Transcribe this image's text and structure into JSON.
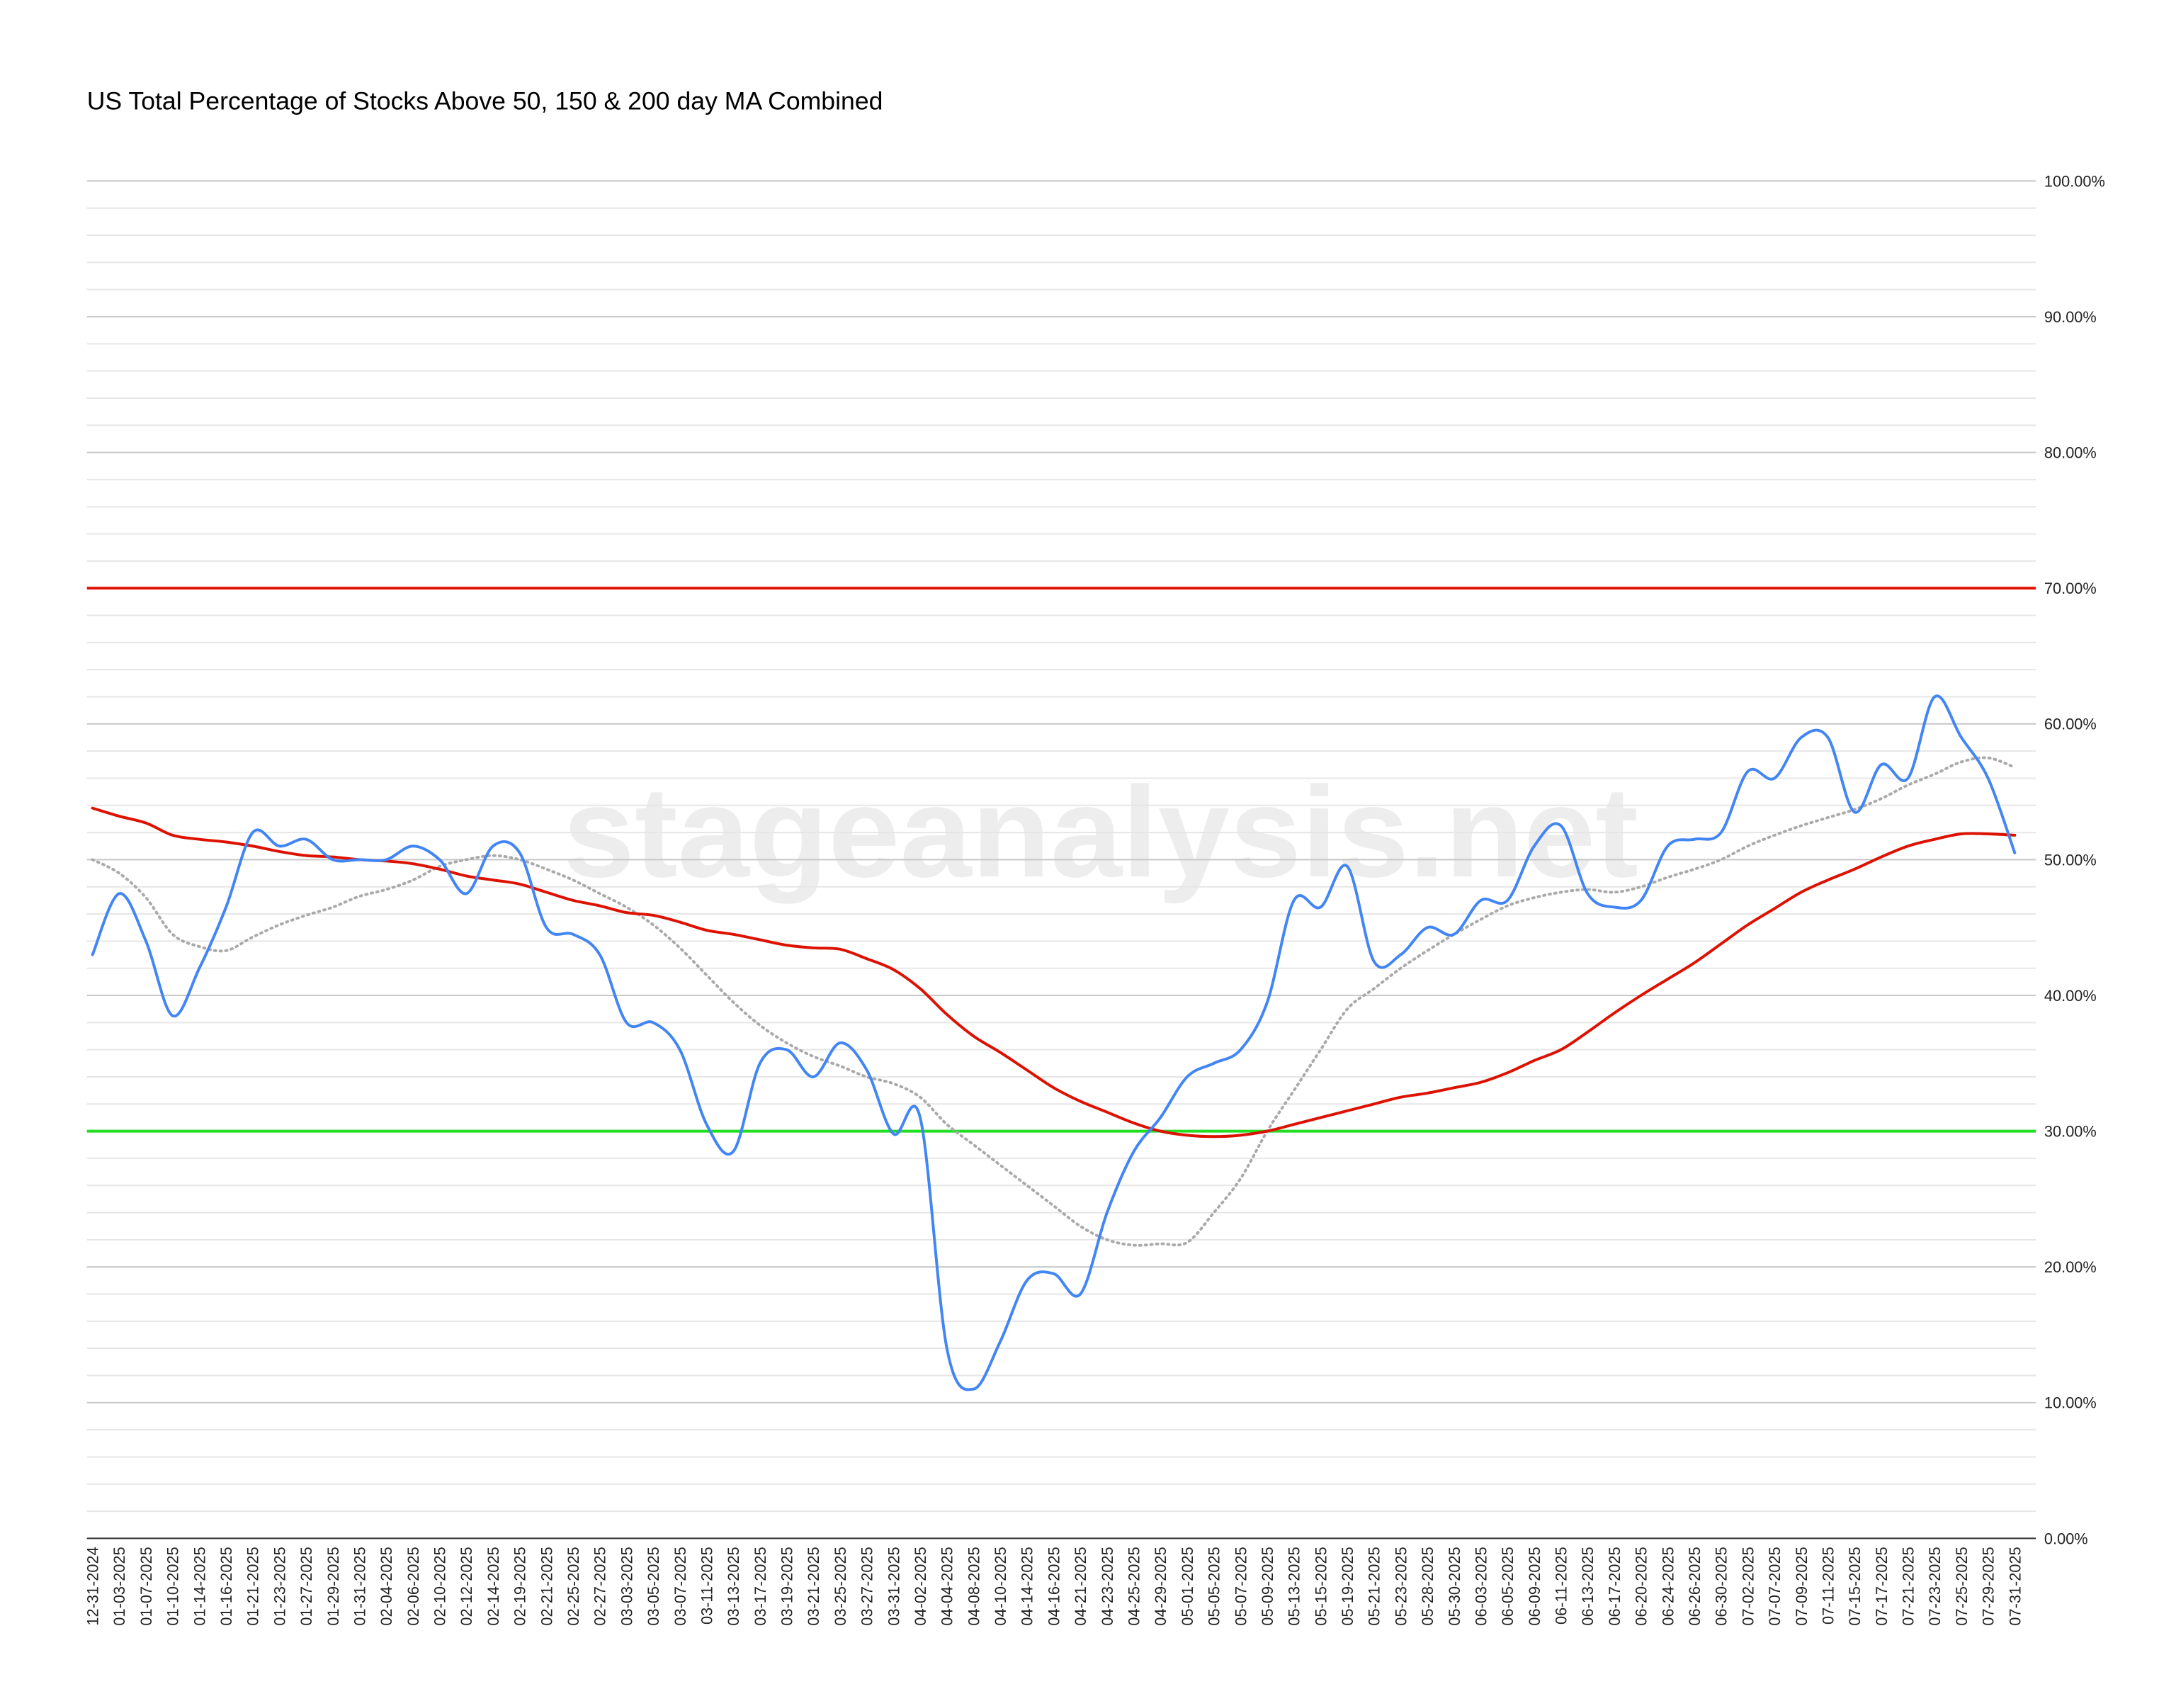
{
  "chart_data": {
    "type": "line",
    "title": "US Total Percentage of Stocks Above 50, 150 & 200 day MA Combined",
    "watermark": "stageanalysis.net",
    "categories": [
      "12-31-2024",
      "01-03-2025",
      "01-07-2025",
      "01-10-2025",
      "01-14-2025",
      "01-16-2025",
      "01-21-2025",
      "01-23-2025",
      "01-27-2025",
      "01-29-2025",
      "01-31-2025",
      "02-04-2025",
      "02-06-2025",
      "02-10-2025",
      "02-12-2025",
      "02-14-2025",
      "02-19-2025",
      "02-21-2025",
      "02-25-2025",
      "02-27-2025",
      "03-03-2025",
      "03-05-2025",
      "03-07-2025",
      "03-11-2025",
      "03-13-2025",
      "03-17-2025",
      "03-19-2025",
      "03-21-2025",
      "03-25-2025",
      "03-27-2025",
      "03-31-2025",
      "04-02-2025",
      "04-04-2025",
      "04-08-2025",
      "04-10-2025",
      "04-14-2025",
      "04-16-2025",
      "04-21-2025",
      "04-23-2025",
      "04-25-2025",
      "04-29-2025",
      "05-01-2025",
      "05-05-2025",
      "05-07-2025",
      "05-09-2025",
      "05-13-2025",
      "05-15-2025",
      "05-19-2025",
      "05-21-2025",
      "05-23-2025",
      "05-28-2025",
      "05-30-2025",
      "06-03-2025",
      "06-05-2025",
      "06-09-2025",
      "06-11-2025",
      "06-13-2025",
      "06-17-2025",
      "06-20-2025",
      "06-24-2025",
      "06-26-2025",
      "06-30-2025",
      "07-02-2025",
      "07-07-2025",
      "07-09-2025",
      "07-11-2025",
      "07-15-2025",
      "07-17-2025",
      "07-21-2025",
      "07-23-2025",
      "07-25-2025",
      "07-29-2025",
      "07-31-2025"
    ],
    "series": [
      {
        "color": "#4285f4",
        "dash": "solid",
        "values": [
          43,
          47.5,
          44,
          38.5,
          42,
          46.5,
          52,
          51,
          51.5,
          50,
          50,
          50,
          51,
          50,
          47.5,
          51,
          50.5,
          45,
          44.5,
          43,
          38,
          38,
          36,
          30.5,
          28.5,
          35,
          36,
          34,
          36.5,
          34.5,
          29.8,
          31,
          14,
          11,
          14.5,
          19,
          19.5,
          18,
          24,
          28.5,
          31,
          34,
          35,
          36,
          39.5,
          47,
          46.5,
          49.5,
          42.5,
          43,
          45,
          44.5,
          47,
          47,
          51,
          52.5,
          47.5,
          46.5,
          47,
          51,
          51.5,
          52,
          56.5,
          56,
          59,
          59,
          53.5,
          57,
          56,
          62,
          59,
          56,
          50.5
        ]
      },
      {
        "color": "#aaaaaa",
        "dash": "dotted",
        "values": [
          50,
          49,
          47.2,
          44.5,
          43.6,
          43.3,
          44.3,
          45.2,
          45.9,
          46.5,
          47.3,
          47.8,
          48.5,
          49.5,
          50,
          50.3,
          50,
          49.3,
          48.5,
          47.5,
          46.5,
          45.2,
          43.5,
          41.5,
          39.5,
          37.8,
          36.5,
          35.5,
          34.8,
          34,
          33.5,
          32.5,
          30.5,
          29,
          27.5,
          26,
          24.5,
          23,
          22,
          21.6,
          21.7,
          21.8,
          24,
          26.5,
          30,
          33,
          36,
          39,
          40.5,
          42,
          43.3,
          44.5,
          45.6,
          46.6,
          47.2,
          47.6,
          47.8,
          47.6,
          48,
          48.7,
          49.3,
          50,
          51,
          51.8,
          52.5,
          53.1,
          53.7,
          54.5,
          55.5,
          56.3,
          57.2,
          57.5,
          56.8
        ]
      },
      {
        "color": "#dd1100",
        "dash": "solid",
        "values": [
          53.8,
          53.2,
          52.7,
          51.8,
          51.5,
          51.3,
          51,
          50.6,
          50.3,
          50.2,
          50,
          49.9,
          49.7,
          49.3,
          48.8,
          48.5,
          48.2,
          47.6,
          47,
          46.6,
          46.1,
          45.9,
          45.4,
          44.8,
          44.5,
          44.1,
          43.7,
          43.5,
          43.4,
          42.7,
          41.9,
          40.5,
          38.6,
          37,
          35.8,
          34.5,
          33.2,
          32.2,
          31.4,
          30.6,
          30,
          29.7,
          29.6,
          29.7,
          30,
          30.5,
          31,
          31.5,
          32,
          32.5,
          32.8,
          33.2,
          33.6,
          34.3,
          35.2,
          36,
          37.3,
          38.7,
          40,
          41.2,
          42.4,
          43.8,
          45.2,
          46.4,
          47.6,
          48.5,
          49.3,
          50.2,
          51,
          51.5,
          51.9,
          51.9,
          51.8
        ]
      }
    ],
    "reference_lines": [
      {
        "value": 70,
        "color": "#dd1100"
      },
      {
        "value": 30,
        "color": "#22dd22"
      }
    ],
    "ylim": [
      0,
      100
    ],
    "yticks": [
      {
        "value": 0,
        "label": "0.00%"
      },
      {
        "value": 10,
        "label": "10.00%"
      },
      {
        "value": 20,
        "label": "20.00%"
      },
      {
        "value": 30,
        "label": "30.00%"
      },
      {
        "value": 40,
        "label": "40.00%"
      },
      {
        "value": 50,
        "label": "50.00%"
      },
      {
        "value": 60,
        "label": "60.00%"
      },
      {
        "value": 70,
        "label": "70.00%"
      },
      {
        "value": 80,
        "label": "80.00%"
      },
      {
        "value": 90,
        "label": "90.00%"
      },
      {
        "value": 100,
        "label": "100.00%"
      }
    ],
    "minor_grid_step": 2,
    "grid": true
  }
}
